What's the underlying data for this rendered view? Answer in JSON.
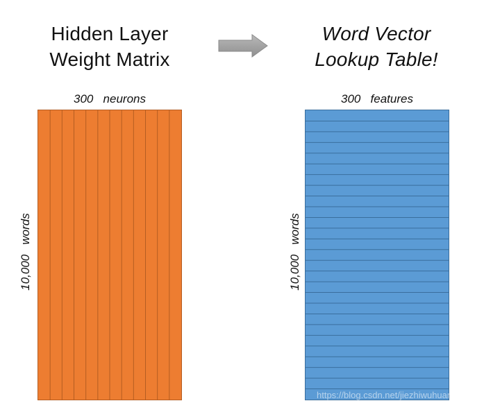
{
  "left_panel": {
    "title_line1": "Hidden Layer",
    "title_line2": "Weight Matrix",
    "top_label": "300   neurons",
    "side_label": "10,000   words",
    "fill_color": "#ed7d31",
    "line_color": "#b45d22",
    "column_divisions": 12
  },
  "arrow": {
    "icon": "right-arrow-icon",
    "color": "#a6a6a6"
  },
  "right_panel": {
    "title_line1": "Word Vector",
    "title_line2": "Lookup Table!",
    "top_label": "300   features",
    "side_label": "10,000   words",
    "fill_color": "#5b9bd5",
    "line_color": "#3a6e9d",
    "row_divisions": 27
  },
  "watermark": "https://blog.csdn.net/jiezhiwuhuan"
}
